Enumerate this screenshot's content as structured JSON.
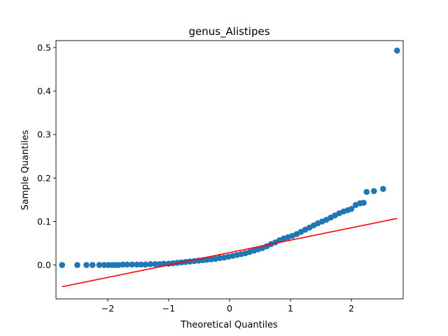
{
  "chart_data": {
    "type": "scatter",
    "title": "genus_Alistipes",
    "xlabel": "Theoretical Quantiles",
    "ylabel": "Sample Quantiles",
    "xlim": [
      -2.85,
      2.85
    ],
    "ylim": [
      -0.078,
      0.516
    ],
    "xticks": [
      -2,
      -1,
      0,
      1,
      2
    ],
    "xtick_labels": [
      "−2",
      "−1",
      "0",
      "1",
      "2"
    ],
    "yticks": [
      0.0,
      0.1,
      0.2,
      0.3,
      0.4,
      0.5
    ],
    "ytick_labels": [
      "0.0",
      "0.1",
      "0.2",
      "0.3",
      "0.4",
      "0.5"
    ],
    "grid": false,
    "points_color": "#1f77b4",
    "line_color": "#ff0000",
    "points": [
      [
        -2.75,
        0.0
      ],
      [
        -2.5,
        0.0
      ],
      [
        -2.35,
        0.0
      ],
      [
        -2.25,
        0.0
      ],
      [
        -2.14,
        0.0
      ],
      [
        -2.06,
        0.0
      ],
      [
        -1.99,
        0.0
      ],
      [
        -1.93,
        0.0
      ],
      [
        -1.87,
        0.0
      ],
      [
        -1.82,
        0.0
      ],
      [
        -1.75,
        0.001
      ],
      [
        -1.68,
        0.001
      ],
      [
        -1.6,
        0.001
      ],
      [
        -1.52,
        0.001
      ],
      [
        -1.45,
        0.001
      ],
      [
        -1.38,
        0.001
      ],
      [
        -1.3,
        0.002
      ],
      [
        -1.22,
        0.002
      ],
      [
        -1.15,
        0.002
      ],
      [
        -1.08,
        0.003
      ],
      [
        -1.0,
        0.003
      ],
      [
        -0.93,
        0.004
      ],
      [
        -0.86,
        0.005
      ],
      [
        -0.79,
        0.006
      ],
      [
        -0.72,
        0.007
      ],
      [
        -0.65,
        0.008
      ],
      [
        -0.58,
        0.009
      ],
      [
        -0.51,
        0.01
      ],
      [
        -0.44,
        0.011
      ],
      [
        -0.37,
        0.012
      ],
      [
        -0.3,
        0.013
      ],
      [
        -0.23,
        0.014
      ],
      [
        -0.16,
        0.016
      ],
      [
        -0.09,
        0.017
      ],
      [
        -0.02,
        0.019
      ],
      [
        0.05,
        0.021
      ],
      [
        0.12,
        0.023
      ],
      [
        0.19,
        0.025
      ],
      [
        0.26,
        0.027
      ],
      [
        0.33,
        0.03
      ],
      [
        0.4,
        0.033
      ],
      [
        0.47,
        0.036
      ],
      [
        0.54,
        0.039
      ],
      [
        0.61,
        0.043
      ],
      [
        0.68,
        0.048
      ],
      [
        0.75,
        0.052
      ],
      [
        0.82,
        0.057
      ],
      [
        0.89,
        0.061
      ],
      [
        0.96,
        0.064
      ],
      [
        1.03,
        0.067
      ],
      [
        1.1,
        0.071
      ],
      [
        1.17,
        0.076
      ],
      [
        1.24,
        0.081
      ],
      [
        1.31,
        0.086
      ],
      [
        1.38,
        0.091
      ],
      [
        1.45,
        0.096
      ],
      [
        1.52,
        0.1
      ],
      [
        1.59,
        0.104
      ],
      [
        1.66,
        0.109
      ],
      [
        1.73,
        0.114
      ],
      [
        1.8,
        0.119
      ],
      [
        1.87,
        0.123
      ],
      [
        1.94,
        0.126
      ],
      [
        2.0,
        0.129
      ],
      [
        2.07,
        0.138
      ],
      [
        2.14,
        0.142
      ],
      [
        2.2,
        0.143
      ],
      [
        2.25,
        0.168
      ],
      [
        2.37,
        0.17
      ],
      [
        2.52,
        0.175
      ],
      [
        2.75,
        0.493
      ]
    ],
    "reference_line": {
      "x": [
        -2.75,
        2.75
      ],
      "y": [
        -0.05,
        0.107
      ]
    }
  }
}
